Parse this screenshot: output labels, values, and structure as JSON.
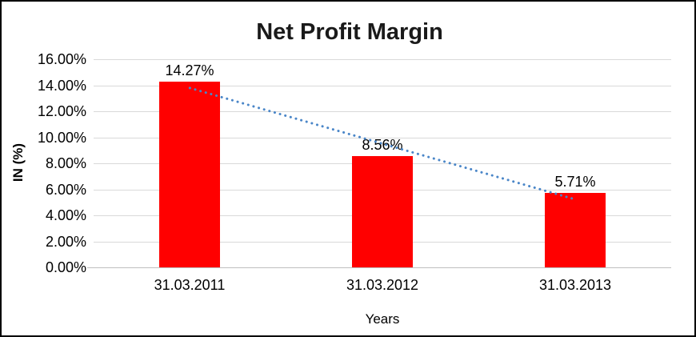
{
  "chart_data": {
    "type": "bar",
    "title": "Net Profit Margin",
    "xlabel": "Years",
    "ylabel": "IN (%)",
    "categories": [
      "31.03.2011",
      "31.03.2012",
      "31.03.2013"
    ],
    "values": [
      14.27,
      8.56,
      5.71
    ],
    "data_labels": [
      "14.27%",
      "8.56%",
      "5.71%"
    ],
    "ylim": [
      0,
      16
    ],
    "ytick_step": 2,
    "ytick_labels": [
      "0.00%",
      "2.00%",
      "4.00%",
      "6.00%",
      "8.00%",
      "10.00%",
      "12.00%",
      "14.00%",
      "16.00%"
    ],
    "grid": true,
    "legend": "none",
    "bar_color": "#ff0000",
    "gridline_color": "#d9d9d9",
    "trendline": {
      "style": "dotted",
      "color": "#4a86c8",
      "start_value": 13.79,
      "end_value": 5.23
    }
  }
}
